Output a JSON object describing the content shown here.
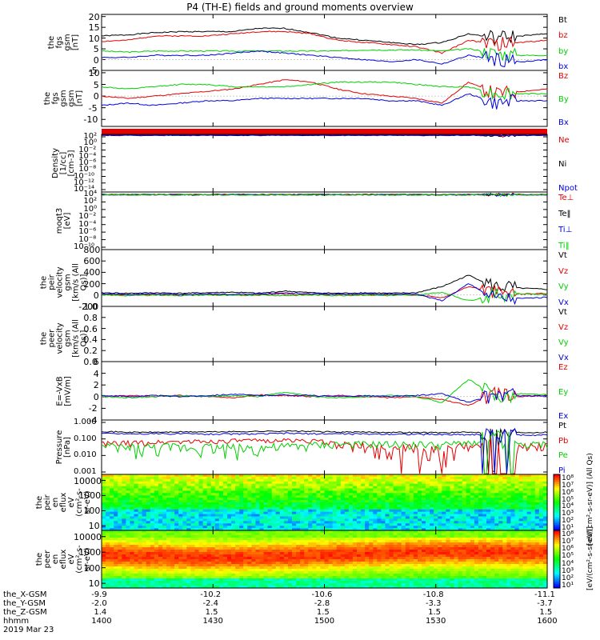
{
  "title": "P4 (TH-E) fields and ground moments overview",
  "colors": {
    "black": "#000000",
    "red": "#e60000",
    "green": "#00d000",
    "blue": "#0000e0"
  },
  "chart_data": [
    {
      "type": "line",
      "panel": "fgs_gsm_nT",
      "ylabel": [
        "the",
        "fgs",
        "gsm",
        "[nT]"
      ],
      "ylim": [
        -5,
        21
      ],
      "ticks": [
        "20",
        "15",
        "10",
        "5",
        "0",
        "-5"
      ],
      "tick_values": [
        20,
        15,
        10,
        5,
        0,
        -5
      ],
      "series": [
        {
          "name": "Bt",
          "color": "#000000",
          "y": [
            11,
            11.5,
            12.5,
            13,
            13,
            13,
            14.5,
            14.5,
            12.5,
            10,
            9,
            8,
            7,
            8,
            12,
            10,
            11,
            12
          ]
        },
        {
          "name": "bz",
          "color": "#e60000",
          "y": [
            8.5,
            9,
            11,
            11,
            11,
            12,
            13,
            13,
            12,
            9,
            8,
            7,
            6,
            3,
            9,
            7,
            8,
            9
          ]
        },
        {
          "name": "by",
          "color": "#00d000",
          "y": [
            4,
            3.5,
            4,
            4,
            4,
            4,
            4,
            4,
            4,
            4,
            4.5,
            4.5,
            4.5,
            4,
            5,
            3,
            2,
            2
          ]
        },
        {
          "name": "bx",
          "color": "#0000e0",
          "y": [
            1,
            1,
            2,
            2,
            2,
            3,
            4,
            3,
            2,
            1,
            0,
            -1,
            0,
            -2,
            2,
            0,
            -1,
            0
          ]
        }
      ]
    },
    {
      "type": "line",
      "panel": "fgs_gsm_nT_2",
      "ylabel": [
        "the",
        "fgs",
        "gsm",
        "gsm",
        "[nT]"
      ],
      "ylim": [
        -13,
        11
      ],
      "ticks": [
        "10",
        "5",
        "0",
        "-5",
        "-10"
      ],
      "tick_values": [
        10,
        5,
        0,
        -5,
        -10
      ],
      "series": [
        {
          "name": "Bz",
          "color": "#e60000",
          "y": [
            0,
            -1,
            0,
            1,
            2,
            3,
            5,
            7,
            6,
            3,
            1,
            0,
            -1,
            -3,
            6,
            1,
            2,
            3
          ]
        },
        {
          "name": "By",
          "color": "#00d000",
          "y": [
            4,
            3,
            4,
            5,
            5,
            4,
            4,
            4,
            5,
            6,
            6,
            6,
            5,
            4,
            4,
            1,
            1,
            1
          ]
        },
        {
          "name": "Bx",
          "color": "#0000e0",
          "y": [
            -4,
            -3,
            -4,
            -3,
            -2,
            -2,
            -1,
            -1,
            -1,
            -1,
            -1,
            -2,
            -2,
            -4,
            1,
            -3,
            -2,
            -2
          ]
        }
      ]
    },
    {
      "type": "line",
      "panel": "density",
      "ylabel": [
        "Density",
        "[1/cc]",
        "[cm-3]"
      ],
      "ylim": [
        "1e-14",
        "1e2"
      ],
      "ticks": [
        "10^2",
        "10^0",
        "10^-2",
        "10^-4",
        "10^-6",
        "10^-8",
        "10^-10",
        "10^-12",
        "10^-14"
      ],
      "series": [
        {
          "name": "Ne",
          "color": "#e60000",
          "y": [
            1.2,
            1.2,
            1.3,
            1.2,
            1.2,
            1.3,
            1.2,
            1.2,
            1.3,
            1.2,
            1.2,
            1.2,
            1.3,
            1.2,
            1.2,
            1.2,
            1.3,
            1.2
          ]
        },
        {
          "name": "Ni",
          "color": "#000000",
          "y": [
            1,
            1,
            1.1,
            1,
            1,
            1.1,
            1,
            1,
            1.1,
            1,
            1,
            1,
            1.1,
            1,
            1,
            1,
            1.1,
            1
          ]
        },
        {
          "name": "Npot",
          "color": "#0000e0",
          "y": [
            0.9,
            0.9,
            0.9,
            0.9,
            0.9,
            0.9,
            0.9,
            0.9,
            0.9,
            0.9,
            0.9,
            0.9,
            0.9,
            0.9,
            0.9,
            0.9,
            0.9,
            0.9
          ]
        }
      ]
    },
    {
      "type": "line",
      "panel": "temperature",
      "ylabel": [
        "moqt3",
        "[eV]"
      ],
      "ylim": [
        "1e-10",
        "1e4"
      ],
      "ticks": [
        "10^4",
        "10^2",
        "10^0",
        "10^-2",
        "10^-4",
        "10^-6",
        "10^-8",
        "10^-10"
      ],
      "series": [
        {
          "name": "Te⊥",
          "color": "#e60000",
          "y": [
            3.1,
            3.1,
            3.1,
            3.1,
            3.1,
            3.1,
            3.1,
            3.1,
            3.1,
            3.1,
            3.1,
            3.1,
            3.1,
            3.1,
            3.1,
            3.1,
            3.1,
            3.1
          ]
        },
        {
          "name": "Te‖",
          "color": "#000000",
          "y": [
            3.3,
            3.3,
            3.3,
            3.3,
            3.3,
            3.3,
            3.3,
            3.3,
            3.3,
            3.3,
            3.3,
            3.3,
            3.3,
            3.3,
            3.3,
            3.3,
            3.3,
            3.3
          ]
        },
        {
          "name": "Ti⊥",
          "color": "#0000e0",
          "y": [
            3.6,
            3.6,
            3.6,
            3.6,
            3.6,
            3.6,
            3.6,
            3.6,
            3.6,
            3.6,
            3.6,
            3.6,
            3.6,
            3.6,
            3.6,
            3.6,
            3.6,
            3.6
          ]
        },
        {
          "name": "Ti‖",
          "color": "#00d000",
          "y": [
            3.7,
            3.7,
            3.7,
            3.7,
            3.7,
            3.7,
            3.7,
            3.7,
            3.7,
            3.7,
            3.7,
            3.7,
            3.7,
            3.7,
            3.7,
            3.7,
            3.7,
            3.7
          ]
        }
      ]
    },
    {
      "type": "line",
      "panel": "peir_velocity",
      "ylabel": [
        "the",
        "peir",
        "velocity",
        "gsm",
        "[km/s (All Qs)]"
      ],
      "ylim": [
        -200,
        800
      ],
      "ticks": [
        "800",
        "600",
        "400",
        "200",
        "0",
        "-200"
      ],
      "tick_values": [
        800,
        600,
        400,
        200,
        0,
        -200
      ],
      "series": [
        {
          "name": "Vt",
          "color": "#000000",
          "y": [
            40,
            30,
            40,
            30,
            40,
            50,
            30,
            70,
            40,
            30,
            40,
            30,
            40,
            150,
            350,
            150,
            120,
            100
          ]
        },
        {
          "name": "Vz",
          "color": "#e60000",
          "y": [
            10,
            0,
            10,
            0,
            10,
            0,
            10,
            20,
            0,
            10,
            0,
            10,
            0,
            -50,
            150,
            50,
            20,
            30
          ]
        },
        {
          "name": "Vy",
          "color": "#00d000",
          "y": [
            0,
            -10,
            0,
            -10,
            0,
            -10,
            0,
            -10,
            0,
            -10,
            0,
            -10,
            0,
            50,
            -100,
            0,
            20,
            10
          ]
        },
        {
          "name": "Vx",
          "color": "#0000e0",
          "y": [
            20,
            10,
            20,
            10,
            20,
            10,
            20,
            40,
            20,
            10,
            20,
            10,
            20,
            -100,
            200,
            -50,
            -60,
            -40
          ]
        }
      ]
    },
    {
      "type": "line",
      "panel": "peer_velocity",
      "ylabel": [
        "the",
        "peer",
        "velocity",
        "gsm",
        "[km/s (All Qs)]"
      ],
      "ylim": [
        0,
        1
      ],
      "ticks": [
        "1.0",
        "0.8",
        "0.6",
        "0.4",
        "0.2",
        "0.0"
      ],
      "tick_values": [
        1,
        0.8,
        0.6,
        0.4,
        0.2,
        0
      ],
      "series": [
        {
          "name": "Vt",
          "color": "#000000",
          "y": []
        },
        {
          "name": "Vz",
          "color": "#e60000",
          "y": []
        },
        {
          "name": "Vy",
          "color": "#00d000",
          "y": []
        },
        {
          "name": "Vx",
          "color": "#0000e0",
          "y": []
        }
      ]
    },
    {
      "type": "line",
      "panel": "efield",
      "ylabel": [
        "E=-VxB",
        "[mV/m]"
      ],
      "ylim": [
        -4,
        6
      ],
      "ticks": [
        "6",
        "4",
        "2",
        "0",
        "-2",
        "-4"
      ],
      "tick_values": [
        6,
        4,
        2,
        0,
        -2,
        -4
      ],
      "series": [
        {
          "name": "Ez",
          "color": "#e60000",
          "y": [
            0,
            0.2,
            0,
            0.2,
            0,
            -0.2,
            0.3,
            0.2,
            0,
            0.2,
            0,
            -0.2,
            0,
            -0.5,
            -1.5,
            0.5,
            0,
            0.2
          ]
        },
        {
          "name": "Ey",
          "color": "#00d000",
          "y": [
            0,
            -0.2,
            0,
            0.2,
            0,
            0.2,
            0,
            0.8,
            0,
            -0.2,
            0,
            0.2,
            0,
            -1,
            3,
            0,
            0.5,
            0.3
          ]
        },
        {
          "name": "Ex",
          "color": "#0000e0",
          "y": [
            0.2,
            0,
            0.2,
            0,
            0.2,
            0.4,
            0.2,
            0.3,
            0.2,
            0,
            0.2,
            0,
            0.2,
            0.5,
            -1,
            0.3,
            0.2,
            0.1
          ]
        }
      ]
    },
    {
      "type": "line",
      "panel": "pressure",
      "ylabel": [
        "Pressure",
        "[nPa]"
      ],
      "ylim": [
        "0.001",
        "1.5"
      ],
      "ticks": [
        "1.000",
        "0.100",
        "0.010",
        "0.001"
      ],
      "series": [
        {
          "name": "Pt",
          "color": "#000000",
          "y": [
            0.4,
            0.35,
            0.35,
            0.37,
            0.37,
            0.38,
            0.4,
            0.42,
            0.4,
            0.36,
            0.36,
            0.35,
            0.34,
            0.33,
            0.35,
            0.34,
            0.34,
            0.35
          ]
        },
        {
          "name": "Pb",
          "color": "#e60000",
          "y": [
            0.06,
            0.07,
            0.08,
            0.09,
            0.09,
            0.1,
            0.1,
            0.11,
            0.1,
            0.06,
            0.04,
            0.03,
            0.03,
            0.01,
            0.05,
            0.03,
            0.04,
            0.05
          ]
        },
        {
          "name": "Pe",
          "color": "#00d000",
          "y": [
            0.04,
            0.035,
            0.035,
            0.04,
            0.04,
            0.035,
            0.035,
            0.04,
            0.05,
            0.06,
            0.06,
            0.06,
            0.06,
            0.05,
            0.08,
            0.05,
            0.05,
            0.06
          ]
        },
        {
          "name": "Pi",
          "color": "#0000e0",
          "y": [
            0.3,
            0.28,
            0.28,
            0.28,
            0.27,
            0.27,
            0.27,
            0.3,
            0.28,
            0.28,
            0.27,
            0.27,
            0.26,
            0.25,
            0.25,
            0.24,
            0.24,
            0.24
          ]
        }
      ]
    },
    {
      "type": "heatmap",
      "panel": "peir_en_eflux",
      "ylabel": [
        "the",
        "peir",
        "en",
        "eflux",
        "eV",
        "(cm^2-s-",
        "sr-eV)"
      ],
      "ylim": [
        5,
        25000
      ],
      "ticks": [
        "10000",
        "1000",
        "100",
        "10"
      ],
      "colorbar_label": "[eV/(cm^2-s-sr-eV)] (All Qs)",
      "colorbar_ticks": [
        "10^8",
        "10^7",
        "10^6",
        "10^5",
        "10^4",
        "10^3",
        "10^2",
        "10^1"
      ]
    },
    {
      "type": "heatmap",
      "panel": "peer_en_eflux",
      "ylabel": [
        "the",
        "peer",
        "en",
        "eflux",
        "eV",
        "(cm^2-s-",
        "sr-eV)"
      ],
      "ylim": [
        5,
        25000
      ],
      "ticks": [
        "10000",
        "1000",
        "100",
        "10"
      ],
      "colorbar_label": "[eV/(cm^2-s-sr-eV)]",
      "colorbar_ticks": [
        "10^8",
        "10^7",
        "10^6",
        "10^5",
        "10^4",
        "10^3",
        "10^2",
        "10^1"
      ]
    }
  ],
  "xaxis": {
    "rows": [
      {
        "label": "the_X-GSM",
        "values": [
          "-9.9",
          "-10.2",
          "-10.6",
          "-10.8",
          "-11.1"
        ]
      },
      {
        "label": "the_Y-GSM",
        "values": [
          "-2.0",
          "-2.4",
          "-2.8",
          "-3.3",
          "-3.7"
        ]
      },
      {
        "label": "the_Z-GSM",
        "values": [
          "1.4",
          "1.5",
          "1.5",
          "1.5",
          "1.5"
        ]
      },
      {
        "label": "hhmm",
        "values": [
          "1400",
          "1430",
          "1500",
          "1530",
          "1600"
        ]
      }
    ],
    "date": "2019 Mar 23"
  }
}
